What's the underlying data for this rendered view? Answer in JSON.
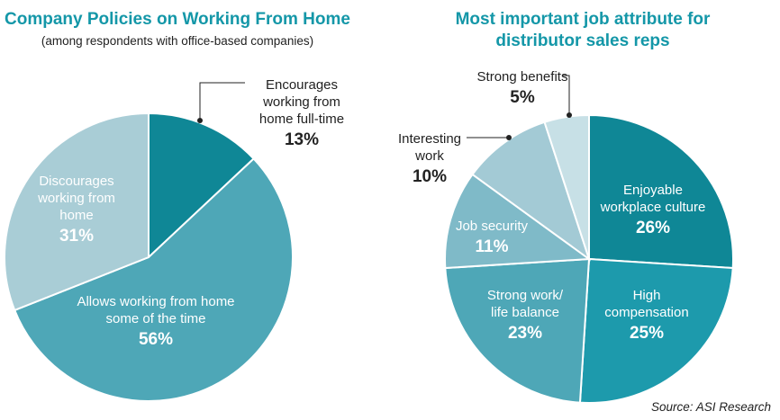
{
  "chart_data": [
    {
      "type": "pie",
      "title": "Company Policies on Working From Home",
      "subtitle": "(among respondents with office-based companies)",
      "slices": [
        {
          "label": [
            "Encourages",
            "working from",
            "home full-time"
          ],
          "value": 13,
          "value_label": "13%",
          "color": "#0f8796"
        },
        {
          "label": [
            "Allows working from home",
            "some of the time"
          ],
          "value": 56,
          "value_label": "56%",
          "color": "#4ea7b7"
        },
        {
          "label": [
            "Discourages",
            "working from",
            "home"
          ],
          "value": 31,
          "value_label": "31%",
          "color": "#a9cdd6"
        }
      ]
    },
    {
      "type": "pie",
      "title": [
        "Most important job attribute for",
        "distributor sales reps"
      ],
      "slices": [
        {
          "label": [
            "Enjoyable",
            "workplace culture"
          ],
          "value": 26,
          "value_label": "26%",
          "color": "#0f8796"
        },
        {
          "label": [
            "High",
            "compensation"
          ],
          "value": 25,
          "value_label": "25%",
          "color": "#1d9aac"
        },
        {
          "label": [
            "Strong work/",
            "life balance"
          ],
          "value": 23,
          "value_label": "23%",
          "color": "#4ea7b7"
        },
        {
          "label": [
            "Job security"
          ],
          "value": 11,
          "value_label": "11%",
          "color": "#7fbac8"
        },
        {
          "label": [
            "Interesting",
            "work"
          ],
          "value": 10,
          "value_label": "10%",
          "color": "#a3cad5"
        },
        {
          "label": [
            "Strong benefits"
          ],
          "value": 5,
          "value_label": "5%",
          "color": "#c7e0e6"
        }
      ]
    }
  ],
  "source": "Source: ASI Research"
}
